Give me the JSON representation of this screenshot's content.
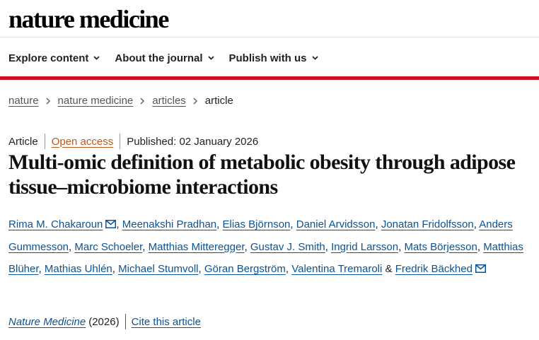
{
  "header": {
    "logo_text": "nature medicine"
  },
  "nav": {
    "items": [
      {
        "label": "Explore content"
      },
      {
        "label": "About the journal"
      },
      {
        "label": "Publish with us"
      }
    ]
  },
  "breadcrumb": {
    "items": [
      "nature",
      "nature medicine",
      "articles"
    ],
    "current": "article"
  },
  "article": {
    "type": "Article",
    "access": "Open access",
    "published": "Published: 02 January 2026",
    "title": "Multi-omic definition of metabolic obesity through adipose tissue–microbiome interactions",
    "authors": [
      "Rima M. Chakaroun",
      "Meenakshi Pradhan",
      "Elias Björnson",
      "Daniel Arvidsson",
      "Jonatan Fridolfsson",
      "Anders Gummesson",
      "Marc Schoeler",
      "Matthias Mitteregger",
      "Gustav J. Smith",
      "Ingrid Larsson",
      "Mats Börjesson",
      "Matthias Blüher",
      "Mathias Uhlén",
      "Michael Stumvoll",
      "Göran Bergström",
      "Valentina Tremaroli",
      "Fredrik Bäckhed"
    ],
    "separator": ", ",
    "conjunction": " & ",
    "journal": "Nature Medicine",
    "year": "(2026)",
    "cite_label": "Cite this article"
  },
  "colors": {
    "brand_red": "#cc1326",
    "link": "#0b5394",
    "open_access": "#b95b1e"
  },
  "icons": {
    "nav_chevron": "chevron-down-icon",
    "breadcrumb_sep": "chevron-right-icon",
    "mail": "mail-icon"
  }
}
